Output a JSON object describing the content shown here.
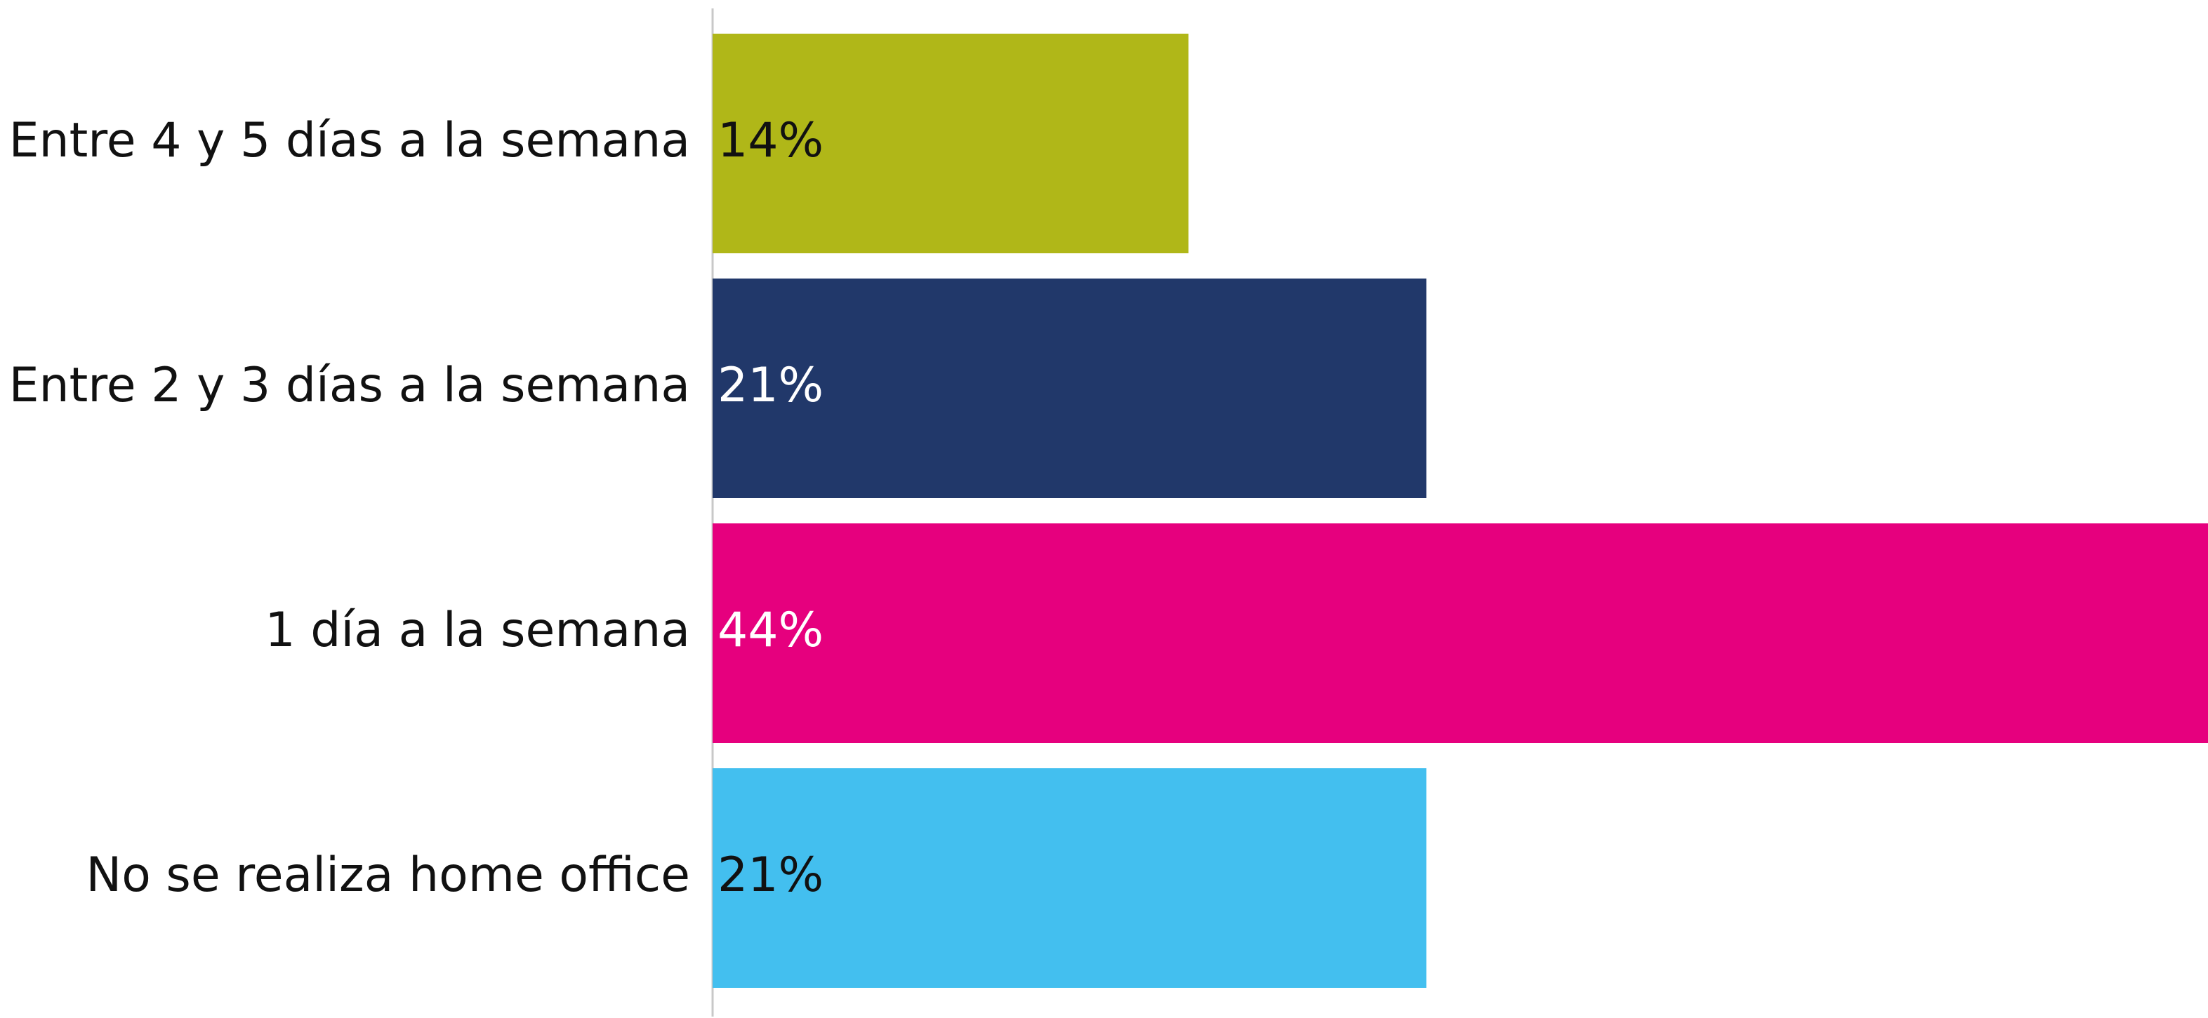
{
  "chart_data": {
    "type": "barh",
    "categories": [
      "Entre 4 y 5 días a la semana",
      "Entre 2 y 3 días a la semana",
      "1 día a la semana",
      "No se realiza home office"
    ],
    "values": [
      14,
      21,
      44,
      21
    ],
    "value_labels": [
      "14%",
      "21%",
      "44%",
      "21%"
    ],
    "colors": [
      "#b0b718",
      "#21386a",
      "#e6007e",
      "#43bfef"
    ]
  }
}
